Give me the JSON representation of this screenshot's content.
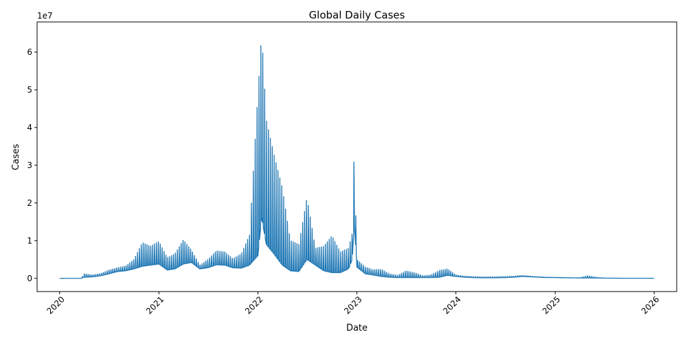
{
  "chart_data": {
    "type": "line",
    "title": "Global Daily Cases",
    "xlabel": "Date",
    "ylabel": "Cases",
    "offset_text": "1e7",
    "x_ticks": [
      "2020",
      "2021",
      "2022",
      "2023",
      "2024",
      "2025",
      "2026"
    ],
    "y_ticks": [
      "0",
      "1",
      "2",
      "3",
      "4",
      "5",
      "6"
    ],
    "xlim": [
      "2019-10-10",
      "2026-03-25"
    ],
    "ylim": [
      -3500000,
      68000000
    ],
    "grid": false,
    "legend": "none",
    "line_color": "#1f77b4",
    "series": [
      {
        "x": [
          "2020-01-01",
          "2020-03-01",
          "2020-03-20",
          "2020-04-01",
          "2020-05-01",
          "2020-06-01",
          "2020-07-01",
          "2020-08-01",
          "2020-09-01",
          "2020-10-01",
          "2020-11-01",
          "2020-12-01",
          "2021-01-01",
          "2021-02-01",
          "2021-03-01",
          "2021-04-01",
          "2021-05-01",
          "2021-06-01",
          "2021-07-01",
          "2021-08-01",
          "2021-09-01",
          "2021-10-01",
          "2021-11-01",
          "2021-12-01",
          "2022-01-01",
          "2022-01-15",
          "2022-02-01",
          "2022-03-01",
          "2022-04-01",
          "2022-05-01",
          "2022-06-01",
          "2022-07-01",
          "2022-08-01",
          "2022-09-01",
          "2022-10-01",
          "2022-11-01",
          "2022-12-01",
          "2022-12-15",
          "2022-12-22",
          "2023-01-01",
          "2023-02-01",
          "2023-03-01",
          "2023-04-01",
          "2023-05-01",
          "2023-06-01",
          "2023-07-01",
          "2023-08-01",
          "2023-09-01",
          "2023-10-01",
          "2023-11-01",
          "2023-12-01",
          "2024-01-01",
          "2024-02-01",
          "2024-03-01",
          "2024-04-01",
          "2024-05-01",
          "2024-06-01",
          "2024-07-01",
          "2024-08-01",
          "2024-09-01",
          "2024-10-01",
          "2024-11-01",
          "2024-12-01",
          "2025-01-01",
          "2025-02-01",
          "2025-03-01",
          "2025-04-01",
          "2025-05-01",
          "2025-06-01",
          "2025-07-01",
          "2025-08-01",
          "2025-09-01",
          "2025-10-01",
          "2025-11-01",
          "2025-12-01",
          "2026-01-01"
        ],
        "low": [
          0,
          0,
          0,
          300000,
          400000,
          700000,
          1200000,
          1800000,
          2000000,
          2500000,
          3200000,
          3500000,
          3800000,
          2200000,
          2500000,
          3800000,
          4200000,
          2500000,
          2800000,
          3600000,
          3500000,
          2800000,
          2700000,
          3500000,
          6000000,
          16000000,
          9000000,
          6500000,
          3500000,
          2000000,
          1800000,
          5000000,
          3500000,
          2000000,
          1500000,
          1500000,
          2500000,
          5000000,
          15000000,
          3000000,
          1200000,
          900000,
          500000,
          300000,
          200000,
          200000,
          200000,
          200000,
          200000,
          300000,
          800000,
          500000,
          300000,
          200000,
          150000,
          150000,
          150000,
          200000,
          300000,
          500000,
          400000,
          300000,
          200000,
          200000,
          150000,
          120000,
          100000,
          100000,
          80000,
          60000,
          40000,
          30000,
          20000,
          20000,
          20000,
          20000
        ],
        "high": [
          0,
          0,
          0,
          1200000,
          900000,
          1300000,
          2200000,
          2800000,
          3300000,
          5000000,
          9500000,
          8500000,
          9800000,
          5500000,
          6500000,
          10200000,
          7500000,
          3500000,
          5000000,
          7300000,
          7000000,
          5200000,
          6500000,
          11500000,
          49000000,
          65200000,
          42000000,
          33000000,
          24000000,
          10000000,
          9000000,
          21500000,
          8000000,
          8500000,
          11300000,
          7000000,
          8000000,
          12000000,
          34000000,
          5000000,
          3000000,
          2300000,
          2400000,
          1200000,
          800000,
          2000000,
          1500000,
          700000,
          900000,
          2100000,
          2500000,
          900000,
          600000,
          500000,
          400000,
          400000,
          450000,
          500000,
          600000,
          800000,
          600000,
          450000,
          350000,
          300000,
          250000,
          200000,
          180000,
          700000,
          300000,
          100000,
          60000,
          40000,
          30000,
          30000,
          30000,
          30000
        ]
      }
    ]
  }
}
